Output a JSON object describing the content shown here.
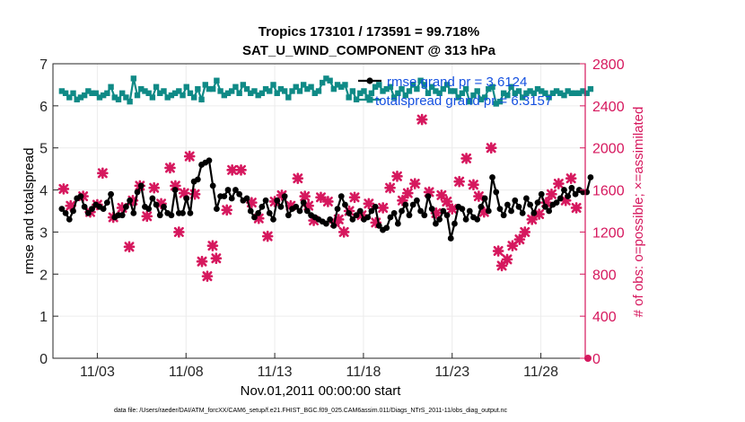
{
  "chart_data": {
    "type": "line",
    "title": "Tropics 173101 / 173591 = 99.718%",
    "subtitle": "SAT_U_WIND_COMPONENT @ 313 hPa",
    "xlabel": "Nov.01,2011 00:00:00 start",
    "ylabel": "rmse and totalspread",
    "y2label": "# of obs: o=possible; ×=assimilated",
    "footer": "data file: /Users/raeder/DAI/ATM_forcXX/CAM6_setup/f.e21.FHIST_BGC.f09_025.CAM6assim.011/Diags_NTrS_2011-11/obs_diag_output.nc",
    "x_range": [
      0.5,
      30.5
    ],
    "x_ticks": [
      {
        "value": 3,
        "label": "11/03"
      },
      {
        "value": 8,
        "label": "11/08"
      },
      {
        "value": 13,
        "label": "11/13"
      },
      {
        "value": 18,
        "label": "11/18"
      },
      {
        "value": 23,
        "label": "11/23"
      },
      {
        "value": 28,
        "label": "11/28"
      }
    ],
    "ylim": [
      0,
      7
    ],
    "y_ticks": [
      "0",
      "1",
      "2",
      "3",
      "4",
      "5",
      "6",
      "7"
    ],
    "y2lim": [
      0,
      2800
    ],
    "y2_ticks": [
      "0",
      "400",
      "800",
      "1200",
      "1600",
      "2000",
      "2400",
      "2800"
    ],
    "legend": [
      {
        "label": "rmse grand pr = 3.6124",
        "color": "#000000"
      },
      {
        "label": "totalspread grand pr = 6.3157",
        "color": "#0f8a86"
      }
    ],
    "colors": {
      "rmse": "#000000",
      "spread": "#0f8a86",
      "obs": "#d6185e",
      "legend_text": "#1450e0"
    },
    "series": [
      {
        "name": "rmse",
        "values": [
          3.55,
          3.45,
          3.3,
          3.5,
          3.8,
          3.85,
          3.6,
          3.45,
          3.55,
          3.65,
          3.6,
          3.55,
          3.7,
          3.9,
          3.35,
          3.4,
          3.4,
          3.6,
          3.75,
          3.45,
          3.95,
          4.1,
          3.6,
          3.55,
          3.8,
          3.65,
          3.4,
          3.6,
          3.45,
          3.4,
          4.0,
          3.45,
          3.45,
          3.8,
          3.45,
          4.2,
          4.25,
          4.6,
          4.65,
          4.7,
          4.1,
          3.55,
          3.85,
          3.85,
          4.0,
          3.8,
          4.0,
          3.9,
          3.75,
          3.8,
          3.5,
          3.35,
          3.45,
          3.6,
          3.75,
          3.45,
          3.3,
          3.75,
          3.6,
          3.85,
          3.4,
          3.55,
          3.6,
          3.5,
          3.7,
          3.5,
          3.4,
          3.35,
          3.3,
          3.25,
          3.2,
          3.3,
          3.15,
          3.55,
          3.85,
          3.65,
          3.45,
          3.3,
          3.4,
          3.5,
          3.3,
          3.35,
          3.5,
          3.6,
          3.15,
          3.05,
          3.1,
          3.35,
          3.45,
          3.2,
          3.5,
          3.65,
          3.4,
          3.65,
          3.75,
          3.5,
          3.4,
          3.85,
          3.55,
          3.2,
          3.3,
          3.5,
          3.4,
          2.85,
          3.2,
          3.6,
          3.55,
          3.3,
          3.5,
          3.35,
          3.3,
          3.6,
          3.8,
          3.5,
          4.3,
          3.95,
          3.55,
          3.4,
          3.65,
          3.5,
          3.75,
          3.6,
          3.45,
          3.8,
          3.65,
          3.45,
          3.7,
          3.9,
          3.6,
          3.5,
          3.65,
          3.7,
          3.8,
          4.0,
          3.85,
          4.05,
          3.9,
          4.0,
          3.95,
          3.95,
          4.3
        ]
      },
      {
        "name": "totalspread",
        "values": [
          6.35,
          6.3,
          6.2,
          6.3,
          6.15,
          6.2,
          6.25,
          6.35,
          6.3,
          6.3,
          6.2,
          6.25,
          6.3,
          6.45,
          6.2,
          6.15,
          6.3,
          6.2,
          6.1,
          6.65,
          6.25,
          6.4,
          6.35,
          6.3,
          6.2,
          6.45,
          6.3,
          6.35,
          6.2,
          6.25,
          6.3,
          6.35,
          6.25,
          6.45,
          6.3,
          6.2,
          6.4,
          6.15,
          6.5,
          6.4,
          6.4,
          6.6,
          6.35,
          6.25,
          6.3,
          6.35,
          6.45,
          6.3,
          6.5,
          6.4,
          6.3,
          6.35,
          6.25,
          6.3,
          6.4,
          6.35,
          6.5,
          6.3,
          6.4,
          6.35,
          6.2,
          6.35,
          6.45,
          6.35,
          6.5,
          6.4,
          6.45,
          6.3,
          6.35,
          6.55,
          6.65,
          6.6,
          6.4,
          6.5,
          6.45,
          6.5,
          6.2,
          6.35,
          6.15,
          6.3,
          6.35,
          6.2,
          6.3,
          6.45,
          6.5,
          6.35,
          6.4,
          6.45,
          6.2,
          6.3,
          6.4,
          6.25,
          6.35,
          6.5,
          6.4,
          6.6,
          6.5,
          6.3,
          6.45,
          6.35,
          6.3,
          6.4,
          6.5,
          6.35,
          6.35,
          6.2,
          6.3,
          6.4,
          6.1,
          6.25,
          6.35,
          6.15,
          6.2,
          6.4,
          6.45,
          6.05,
          6.1,
          6.3,
          6.25,
          6.45,
          6.3,
          6.35,
          6.2,
          6.3,
          6.35,
          6.3,
          6.4,
          6.35,
          6.3,
          6.2,
          6.3,
          6.35,
          6.3,
          6.25,
          6.35,
          6.3,
          6.3,
          6.3,
          6.35,
          6.3,
          6.4
        ]
      },
      {
        "name": "obs",
        "axis": "right",
        "points": [
          [
            1.1,
            1610
          ],
          [
            1.5,
            1450
          ],
          [
            2.2,
            1540
          ],
          [
            2.6,
            1390
          ],
          [
            3.0,
            1460
          ],
          [
            3.3,
            1760
          ],
          [
            3.9,
            1340
          ],
          [
            4.4,
            1430
          ],
          [
            4.8,
            1060
          ],
          [
            5.0,
            1500
          ],
          [
            5.4,
            1640
          ],
          [
            5.8,
            1350
          ],
          [
            6.2,
            1620
          ],
          [
            6.6,
            1470
          ],
          [
            7.1,
            1810
          ],
          [
            7.4,
            1640
          ],
          [
            7.6,
            1200
          ],
          [
            7.9,
            1570
          ],
          [
            8.2,
            1920
          ],
          [
            8.5,
            1560
          ],
          [
            8.9,
            920
          ],
          [
            9.2,
            780
          ],
          [
            9.5,
            1070
          ],
          [
            9.7,
            950
          ],
          [
            10.3,
            1410
          ],
          [
            10.6,
            1790
          ],
          [
            11.1,
            1790
          ],
          [
            11.7,
            1480
          ],
          [
            12.1,
            1330
          ],
          [
            12.6,
            1160
          ],
          [
            13.0,
            1490
          ],
          [
            13.4,
            1550
          ],
          [
            13.9,
            1450
          ],
          [
            14.3,
            1710
          ],
          [
            14.7,
            1540
          ],
          [
            14.9,
            1450
          ],
          [
            15.2,
            1310
          ],
          [
            15.6,
            1530
          ],
          [
            16.0,
            1490
          ],
          [
            16.4,
            1290
          ],
          [
            16.6,
            1320
          ],
          [
            16.9,
            1200
          ],
          [
            17.2,
            1400
          ],
          [
            17.5,
            1530
          ],
          [
            17.9,
            1360
          ],
          [
            18.3,
            1470
          ],
          [
            18.7,
            1290
          ],
          [
            19.1,
            1430
          ],
          [
            19.5,
            1620
          ],
          [
            19.9,
            1730
          ],
          [
            20.2,
            1500
          ],
          [
            20.5,
            1570
          ],
          [
            20.9,
            1660
          ],
          [
            21.3,
            2270
          ],
          [
            21.7,
            1580
          ],
          [
            22.1,
            1380
          ],
          [
            22.4,
            1550
          ],
          [
            22.7,
            1490
          ],
          [
            23.0,
            1420
          ],
          [
            23.4,
            1680
          ],
          [
            23.8,
            1900
          ],
          [
            24.2,
            1650
          ],
          [
            24.5,
            1540
          ],
          [
            24.8,
            1390
          ],
          [
            25.2,
            2000
          ],
          [
            25.6,
            1020
          ],
          [
            25.8,
            880
          ],
          [
            26.1,
            940
          ],
          [
            26.4,
            1070
          ],
          [
            26.8,
            1130
          ],
          [
            27.1,
            1200
          ],
          [
            27.5,
            1320
          ],
          [
            27.9,
            1370
          ],
          [
            28.3,
            1480
          ],
          [
            28.6,
            1560
          ],
          [
            29.0,
            1660
          ],
          [
            29.4,
            1500
          ],
          [
            29.7,
            1710
          ],
          [
            30.0,
            1430
          ]
        ]
      }
    ]
  }
}
